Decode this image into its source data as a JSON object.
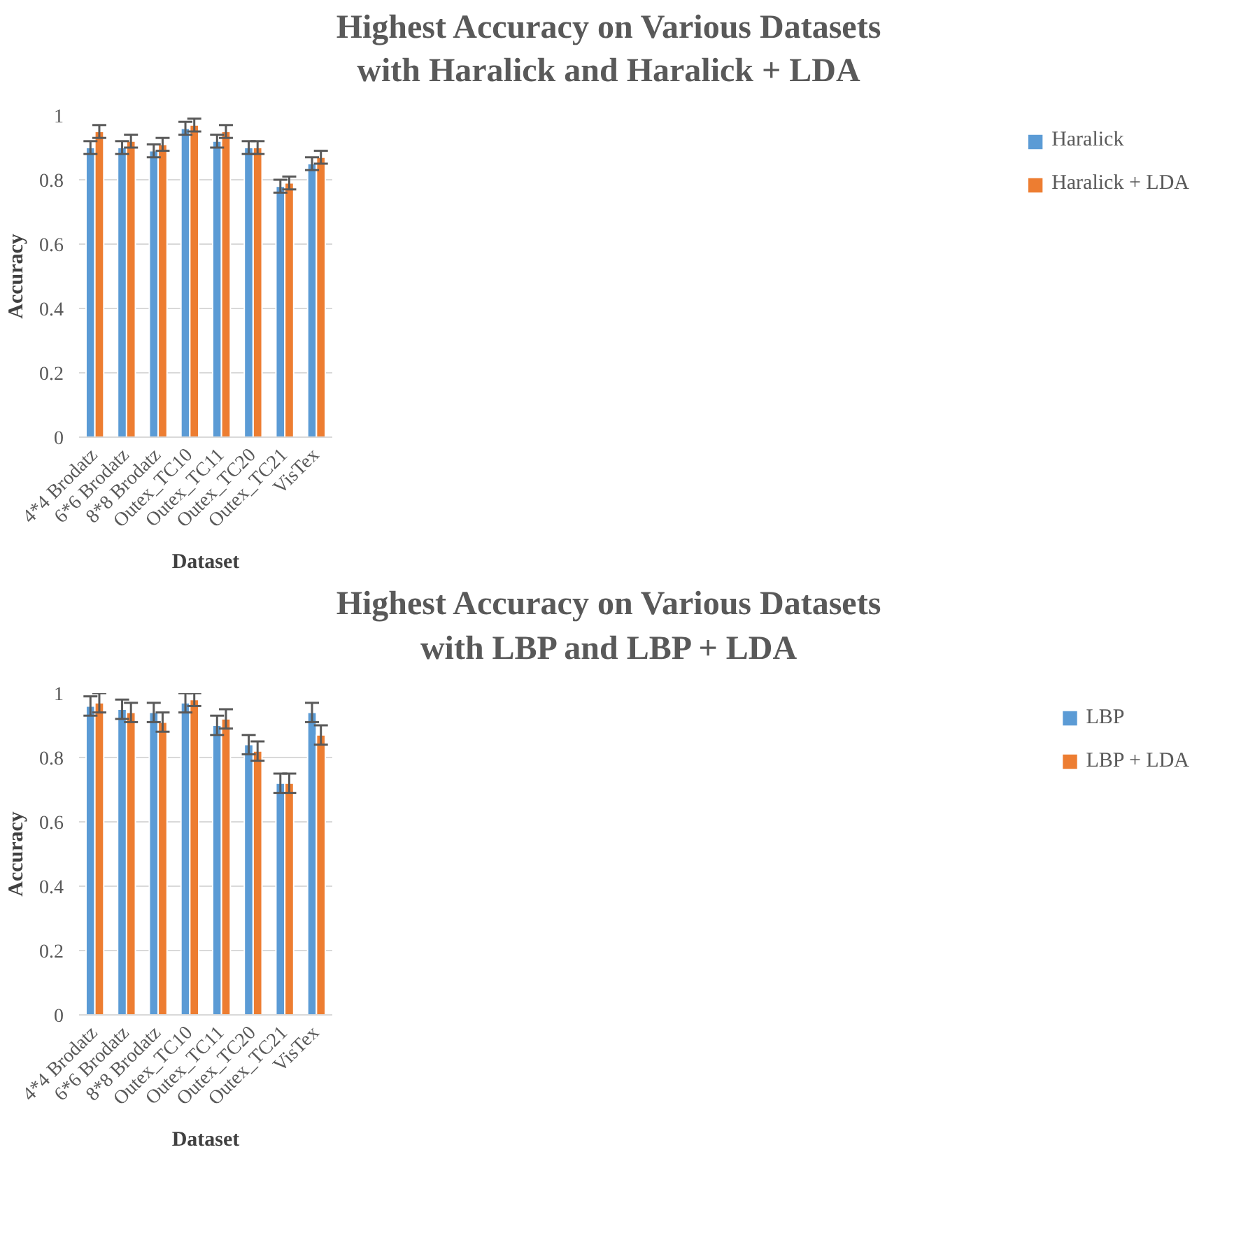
{
  "chart_data": [
    {
      "type": "bar",
      "title": "Highest Accuracy on Various Datasets\nwith Haralick and Haralick + LDA",
      "xlabel": "Dataset",
      "ylabel": "Accuracy",
      "categories": [
        "4*4 Brodatz",
        "6*6 Brodatz",
        "8*8 Brodatz",
        "Outex_TC10",
        "Outex_TC11",
        "Outex_TC20",
        "Outex_TC21",
        "VisTex"
      ],
      "series": [
        {
          "name": "Haralick",
          "color": "#5b9bd5",
          "values": [
            0.9,
            0.9,
            0.89,
            0.96,
            0.92,
            0.9,
            0.78,
            0.85
          ],
          "errors": [
            0.02,
            0.02,
            0.02,
            0.02,
            0.02,
            0.02,
            0.02,
            0.02
          ]
        },
        {
          "name": "Haralick + LDA",
          "color": "#ed7d31",
          "values": [
            0.95,
            0.92,
            0.91,
            0.97,
            0.95,
            0.9,
            0.79,
            0.87
          ],
          "errors": [
            0.02,
            0.02,
            0.02,
            0.02,
            0.02,
            0.02,
            0.02,
            0.02
          ]
        }
      ],
      "ylim": [
        0,
        1
      ],
      "yticks": [
        0,
        0.2,
        0.4,
        0.6,
        0.8,
        1
      ],
      "grid": "y",
      "legend": "right"
    },
    {
      "type": "bar",
      "title": "Highest Accuracy on Various Datasets\nwith LBP and LBP + LDA",
      "xlabel": "Dataset",
      "ylabel": "Accuracy",
      "categories": [
        "4*4 Brodatz",
        "6*6 Brodatz",
        "8*8 Brodatz",
        "Outex_TC10",
        "Outex_TC11",
        "Outex_TC20",
        "Outex_TC21",
        "VisTex"
      ],
      "series": [
        {
          "name": "LBP",
          "color": "#5b9bd5",
          "values": [
            0.96,
            0.95,
            0.94,
            0.97,
            0.9,
            0.84,
            0.72,
            0.94
          ],
          "errors": [
            0.03,
            0.03,
            0.03,
            0.03,
            0.03,
            0.03,
            0.03,
            0.03
          ]
        },
        {
          "name": "LBP + LDA",
          "color": "#ed7d31",
          "values": [
            0.97,
            0.94,
            0.91,
            0.98,
            0.92,
            0.82,
            0.72,
            0.87
          ],
          "errors": [
            0.03,
            0.03,
            0.03,
            0.02,
            0.03,
            0.03,
            0.03,
            0.03
          ]
        }
      ],
      "ylim": [
        0,
        1
      ],
      "yticks": [
        0,
        0.2,
        0.4,
        0.6,
        0.8,
        1
      ],
      "grid": "y",
      "legend": "right"
    }
  ]
}
